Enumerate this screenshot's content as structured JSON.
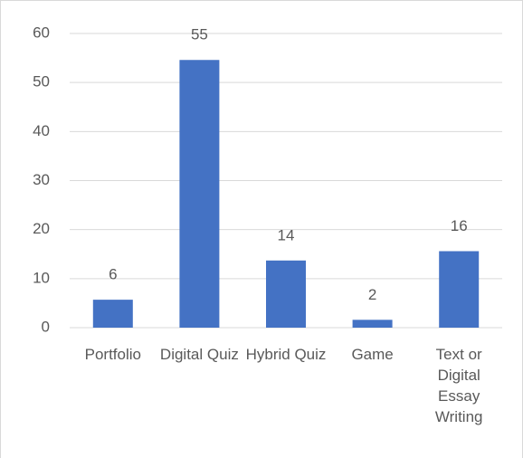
{
  "chart_data": {
    "type": "bar",
    "categories": [
      "Portfolio",
      "Digital Quiz",
      "Hybrid Quiz",
      "Game",
      "Text or Digital Essay Writing"
    ],
    "values": [
      5.7,
      54.6,
      13.7,
      1.6,
      15.6
    ],
    "value_labels": [
      "6",
      "55",
      "14",
      "2",
      "16"
    ],
    "color": "#4472c4",
    "ylim": [
      0,
      60
    ],
    "yticks": [
      0,
      10,
      20,
      30,
      40,
      50,
      60
    ],
    "grid": true
  }
}
